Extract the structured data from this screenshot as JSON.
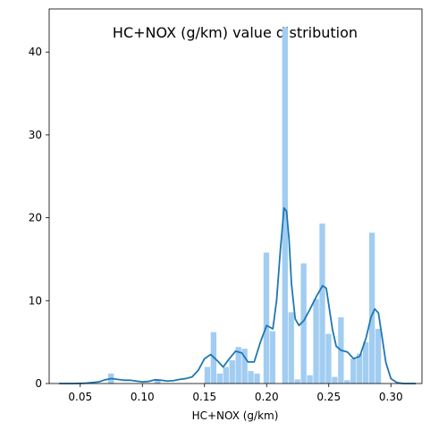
{
  "chart_data": {
    "type": "histogram",
    "title": "HC+NOX (g/km) value distribution",
    "xlabel": "HC+NOX (g/km)",
    "ylabel": "",
    "xlim": [
      0.025,
      0.325
    ],
    "ylim": [
      0,
      45.2
    ],
    "xticks": [
      0.05,
      0.1,
      0.15,
      0.2,
      0.25,
      0.3
    ],
    "xtick_labels": [
      "0.05",
      "0.10",
      "0.15",
      "0.20",
      "0.25",
      "0.30"
    ],
    "yticks": [
      0,
      10,
      20,
      30,
      40
    ],
    "ytick_labels": [
      "0",
      "10",
      "20",
      "30",
      "40"
    ],
    "grid": false,
    "bar_color": "#a2cdf2",
    "line_color": "#1f77b4",
    "bins": [
      {
        "x0": 0.0725,
        "x1": 0.0775,
        "height": 1.2
      },
      {
        "x0": 0.11,
        "x1": 0.115,
        "height": 0.5
      },
      {
        "x0": 0.15,
        "x1": 0.155,
        "height": 2.0
      },
      {
        "x0": 0.155,
        "x1": 0.16,
        "height": 6.2
      },
      {
        "x0": 0.16,
        "x1": 0.165,
        "height": 1.2
      },
      {
        "x0": 0.165,
        "x1": 0.17,
        "height": 2.0
      },
      {
        "x0": 0.17,
        "x1": 0.175,
        "height": 2.8
      },
      {
        "x0": 0.175,
        "x1": 0.18,
        "height": 4.4
      },
      {
        "x0": 0.18,
        "x1": 0.185,
        "height": 4.2
      },
      {
        "x0": 0.185,
        "x1": 0.19,
        "height": 1.5
      },
      {
        "x0": 0.19,
        "x1": 0.195,
        "height": 1.2
      },
      {
        "x0": 0.1975,
        "x1": 0.2025,
        "height": 15.8
      },
      {
        "x0": 0.2025,
        "x1": 0.2075,
        "height": 6.3
      },
      {
        "x0": 0.2125,
        "x1": 0.2175,
        "height": 43.0
      },
      {
        "x0": 0.2175,
        "x1": 0.2225,
        "height": 8.6
      },
      {
        "x0": 0.2225,
        "x1": 0.2275,
        "height": 0.5
      },
      {
        "x0": 0.2275,
        "x1": 0.2325,
        "height": 14.5
      },
      {
        "x0": 0.2325,
        "x1": 0.2375,
        "height": 1.0
      },
      {
        "x0": 0.2375,
        "x1": 0.2425,
        "height": 10.2
      },
      {
        "x0": 0.2425,
        "x1": 0.2475,
        "height": 19.3
      },
      {
        "x0": 0.2475,
        "x1": 0.2525,
        "height": 6.0
      },
      {
        "x0": 0.2525,
        "x1": 0.2575,
        "height": 0.8
      },
      {
        "x0": 0.2575,
        "x1": 0.2625,
        "height": 8.0
      },
      {
        "x0": 0.2625,
        "x1": 0.2675,
        "height": 0.4
      },
      {
        "x0": 0.2675,
        "x1": 0.2725,
        "height": 3.0
      },
      {
        "x0": 0.2725,
        "x1": 0.2775,
        "height": 3.6
      },
      {
        "x0": 0.2775,
        "x1": 0.2825,
        "height": 5.0
      },
      {
        "x0": 0.2825,
        "x1": 0.2875,
        "height": 18.2
      },
      {
        "x0": 0.2875,
        "x1": 0.2925,
        "height": 6.6
      }
    ],
    "kde": {
      "x": [
        0.033,
        0.045,
        0.055,
        0.065,
        0.07,
        0.075,
        0.08,
        0.085,
        0.09,
        0.095,
        0.1,
        0.105,
        0.11,
        0.115,
        0.12,
        0.125,
        0.13,
        0.135,
        0.14,
        0.145,
        0.15,
        0.155,
        0.16,
        0.165,
        0.17,
        0.175,
        0.18,
        0.185,
        0.19,
        0.195,
        0.2,
        0.205,
        0.208,
        0.211,
        0.214,
        0.216,
        0.218,
        0.22,
        0.223,
        0.226,
        0.23,
        0.235,
        0.24,
        0.245,
        0.248,
        0.25,
        0.253,
        0.256,
        0.26,
        0.265,
        0.27,
        0.275,
        0.28,
        0.284,
        0.287,
        0.29,
        0.293,
        0.296,
        0.3,
        0.305,
        0.31,
        0.32
      ],
      "y": [
        0.0,
        0.0,
        0.05,
        0.2,
        0.45,
        0.6,
        0.5,
        0.4,
        0.4,
        0.3,
        0.2,
        0.25,
        0.45,
        0.4,
        0.3,
        0.35,
        0.5,
        0.6,
        0.8,
        1.6,
        3.0,
        3.5,
        2.8,
        2.0,
        3.0,
        3.9,
        3.7,
        2.6,
        2.6,
        5.0,
        7.0,
        6.6,
        10.0,
        16.0,
        21.2,
        20.8,
        17.5,
        12.0,
        7.8,
        7.0,
        7.6,
        9.0,
        10.5,
        11.8,
        11.5,
        9.5,
        6.5,
        4.5,
        4.0,
        3.8,
        3.0,
        3.3,
        5.5,
        8.0,
        9.0,
        8.5,
        5.5,
        2.5,
        0.6,
        0.1,
        0.0,
        0.0
      ]
    }
  }
}
